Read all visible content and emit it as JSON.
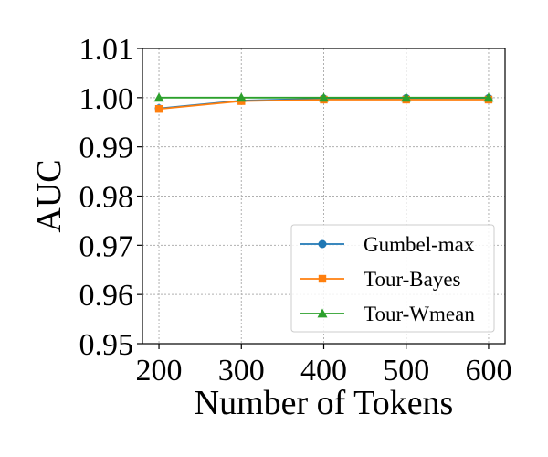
{
  "chart_data": {
    "type": "line",
    "title": "",
    "xlabel": "Number of Tokens",
    "ylabel": "AUC",
    "x": [
      200,
      300,
      400,
      500,
      600
    ],
    "x_ticks": [
      "200",
      "300",
      "400",
      "500",
      "600"
    ],
    "y_ticks": [
      "0.95",
      "0.96",
      "0.97",
      "0.98",
      "0.99",
      "1.00",
      "1.01"
    ],
    "xlim": [
      180,
      620
    ],
    "ylim": [
      0.95,
      1.01
    ],
    "grid": true,
    "legend_position": "lower-right",
    "series": [
      {
        "name": "Gumbel-max",
        "color": "#1f77b4",
        "marker": "circle",
        "values": [
          0.9978,
          0.9994,
          0.9998,
          0.9999,
          0.9999
        ]
      },
      {
        "name": "Tour-Bayes",
        "color": "#ff7f0e",
        "marker": "square",
        "values": [
          0.9977,
          0.9993,
          0.9996,
          0.9996,
          0.9996
        ]
      },
      {
        "name": "Tour-Wmean",
        "color": "#2ca02c",
        "marker": "triangle",
        "values": [
          1.0,
          1.0,
          1.0,
          1.0,
          1.0
        ]
      }
    ]
  }
}
